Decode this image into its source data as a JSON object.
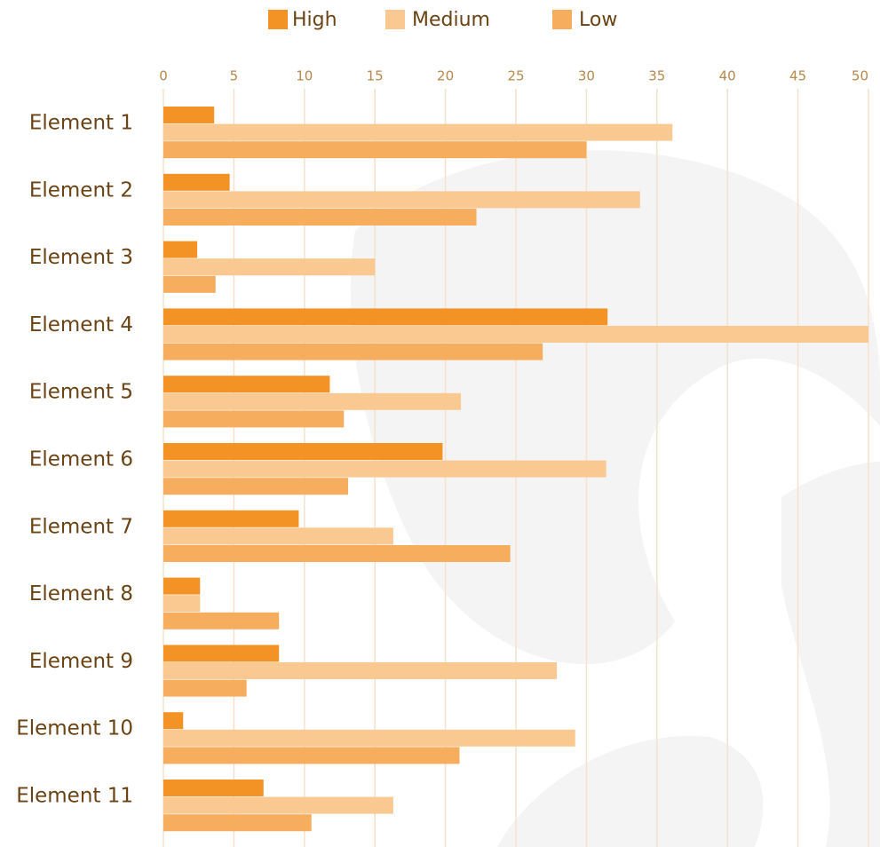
{
  "chart_data": {
    "type": "bar",
    "orientation": "horizontal",
    "categories": [
      "Element 1",
      "Element 2",
      "Element 3",
      "Element 4",
      "Element 5",
      "Element 6",
      "Element 7",
      "Element 8",
      "Element 9",
      "Element 10",
      "Element 11"
    ],
    "series": [
      {
        "name": "High",
        "color": "#f39325",
        "values": [
          3.6,
          4.7,
          2.4,
          31.5,
          11.8,
          19.8,
          9.6,
          2.6,
          8.2,
          1.4,
          7.1
        ]
      },
      {
        "name": "Medium",
        "color": "#fac891",
        "values": [
          36.1,
          33.8,
          15.0,
          50,
          21.1,
          31.4,
          16.3,
          2.6,
          27.9,
          29.2,
          16.3
        ]
      },
      {
        "name": "Low",
        "color": "#f7ad5e",
        "values": [
          30.0,
          22.2,
          3.7,
          26.9,
          12.8,
          13.1,
          24.6,
          8.2,
          5.9,
          21.0,
          10.5
        ]
      }
    ],
    "xlim": [
      0,
      50
    ],
    "xticks": [
      0,
      5,
      10,
      15,
      20,
      25,
      30,
      35,
      40,
      45,
      50
    ],
    "grid": true,
    "legend": "top"
  }
}
